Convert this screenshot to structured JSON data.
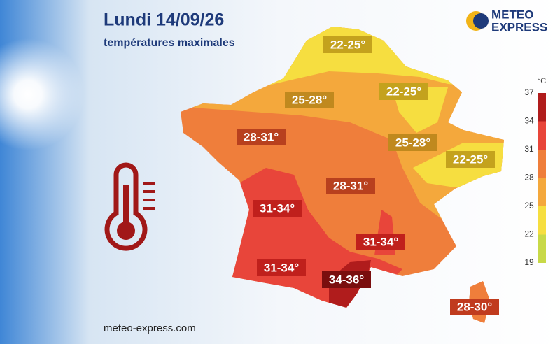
{
  "header": {
    "title": "Lundi 14/09/26",
    "subtitle": "températures maximales"
  },
  "logo": {
    "line1": "METEO",
    "line2": "EXPRESS"
  },
  "legend": {
    "unit": "°C",
    "ticks": [
      37,
      34,
      31,
      28,
      25,
      22,
      19
    ],
    "colors": [
      "#b01c1c",
      "#e8453a",
      "#ef7e3b",
      "#f4a83c",
      "#f6de40",
      "#c8d948"
    ]
  },
  "zones": [
    {
      "label": "22-25°",
      "color": "#c4a21d"
    },
    {
      "label": "25-28°",
      "color": "#c0891e"
    },
    {
      "label": "22-25°",
      "color": "#c4a21d"
    },
    {
      "label": "28-31°",
      "color": "#b8401e"
    },
    {
      "label": "25-28°",
      "color": "#c0891e"
    },
    {
      "label": "22-25°",
      "color": "#c4a21d"
    },
    {
      "label": "28-31°",
      "color": "#b8401e"
    },
    {
      "label": "31-34°",
      "color": "#c0201c"
    },
    {
      "label": "31-34°",
      "color": "#c0201c"
    },
    {
      "label": "31-34°",
      "color": "#c0201c"
    },
    {
      "label": "34-36°",
      "color": "#7a0e0e"
    },
    {
      "label": "28-30°",
      "color": "#c03b1e"
    }
  ],
  "footer": "meteo-express.com"
}
